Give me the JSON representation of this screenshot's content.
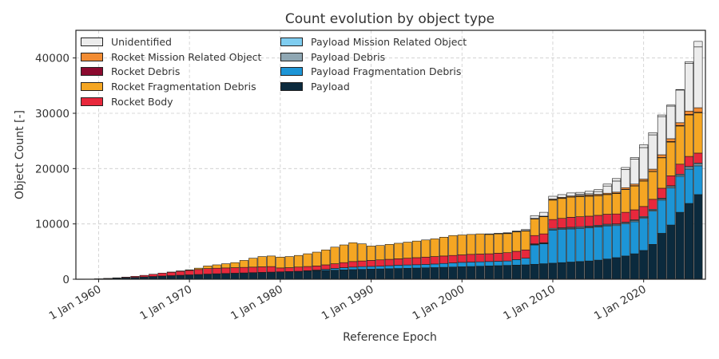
{
  "chart_data": {
    "type": "bar",
    "stacked": true,
    "title": "Count evolution by object type",
    "xlabel": "Reference Epoch",
    "ylabel": "Object Count [-]",
    "ylim": [
      0,
      45000
    ],
    "yticks": [
      0,
      10000,
      20000,
      30000,
      40000
    ],
    "ytick_labels": [
      "0",
      "10000",
      "20000",
      "30000",
      "40000"
    ],
    "xlim": [
      1957.5,
      2026.8
    ],
    "xticks": [
      1960,
      1970,
      1980,
      1990,
      2000,
      2010,
      2020
    ],
    "xtick_labels": [
      "1 Jan 1960",
      "1 Jan 1970",
      "1 Jan 1980",
      "1 Jan 1990",
      "1 Jan 2000",
      "1 Jan 2010",
      "1 Jan 2020"
    ],
    "grid": true,
    "legend_position": "top-left",
    "x": [
      1958,
      1959,
      1960,
      1961,
      1962,
      1963,
      1964,
      1965,
      1966,
      1967,
      1968,
      1969,
      1970,
      1971,
      1972,
      1973,
      1974,
      1975,
      1976,
      1977,
      1978,
      1979,
      1980,
      1981,
      1982,
      1983,
      1984,
      1985,
      1986,
      1987,
      1988,
      1989,
      1990,
      1991,
      1992,
      1993,
      1994,
      1995,
      1996,
      1997,
      1998,
      1999,
      2000,
      2001,
      2002,
      2003,
      2004,
      2005,
      2006,
      2007,
      2008,
      2009,
      2010,
      2011,
      2012,
      2013,
      2014,
      2015,
      2016,
      2017,
      2018,
      2019,
      2020,
      2021,
      2022,
      2023,
      2024,
      2025,
      2026
    ],
    "total": [
      10,
      30,
      70,
      150,
      250,
      380,
      520,
      700,
      900,
      1100,
      1300,
      1500,
      1700,
      2000,
      2400,
      2600,
      2800,
      3000,
      3400,
      3800,
      4100,
      4200,
      4000,
      4100,
      4300,
      4600,
      4900,
      5300,
      5800,
      6200,
      6600,
      6400,
      6000,
      6100,
      6300,
      6500,
      6700,
      6900,
      7100,
      7300,
      7600,
      7900,
      8000,
      8100,
      8200,
      8200,
      8300,
      8400,
      8700,
      9000,
      11500,
      12100,
      15000,
      15300,
      15600,
      15700,
      15900,
      16200,
      17200,
      18200,
      20200,
      22000,
      24300,
      26500,
      29700,
      31500,
      34300,
      39300,
      43000
    ],
    "series": [
      {
        "name": "Payload",
        "color": "#0b2a3d",
        "values": [
          10,
          25,
          60,
          120,
          190,
          270,
          340,
          420,
          500,
          580,
          650,
          720,
          790,
          860,
          930,
          990,
          1040,
          1090,
          1140,
          1190,
          1240,
          1290,
          1340,
          1390,
          1440,
          1490,
          1540,
          1590,
          1640,
          1690,
          1740,
          1780,
          1820,
          1860,
          1900,
          1940,
          1980,
          2020,
          2060,
          2100,
          2150,
          2200,
          2250,
          2300,
          2350,
          2400,
          2450,
          2500,
          2550,
          2600,
          2700,
          2800,
          2900,
          3000,
          3100,
          3200,
          3300,
          3450,
          3650,
          3900,
          4200,
          4600,
          5200,
          6300,
          8300,
          9800,
          12100,
          13700,
          15300
        ]
      },
      {
        "name": "Payload Fragmentation Debris",
        "color": "#1d95d6",
        "values": [
          0,
          0,
          0,
          0,
          0,
          0,
          0,
          0,
          0,
          0,
          0,
          0,
          0,
          0,
          0,
          0,
          0,
          0,
          0,
          0,
          0,
          0,
          0,
          0,
          0,
          50,
          120,
          200,
          320,
          400,
          450,
          500,
          500,
          500,
          550,
          600,
          600,
          600,
          620,
          650,
          700,
          750,
          800,
          800,
          800,
          800,
          800,
          800,
          1000,
          1200,
          3500,
          3600,
          6000,
          6000,
          6000,
          6000,
          6000,
          6000,
          6000,
          5800,
          5800,
          5800,
          5800,
          6000,
          6000,
          6700,
          6500,
          6200,
          5200
        ]
      },
      {
        "name": "Payload Debris",
        "color": "#8fa7b3",
        "values": [
          0,
          0,
          0,
          0,
          0,
          0,
          0,
          0,
          0,
          0,
          0,
          0,
          0,
          0,
          0,
          0,
          0,
          0,
          0,
          0,
          0,
          0,
          0,
          0,
          0,
          0,
          0,
          0,
          0,
          0,
          0,
          0,
          0,
          0,
          0,
          0,
          0,
          0,
          0,
          0,
          0,
          0,
          0,
          0,
          0,
          0,
          0,
          0,
          0,
          0,
          100,
          100,
          150,
          150,
          150,
          150,
          150,
          150,
          150,
          150,
          150,
          200,
          200,
          200,
          200,
          250,
          250,
          300,
          300
        ]
      },
      {
        "name": "Payload Mission Related Object",
        "color": "#7fcdf0",
        "values": [
          0,
          0,
          0,
          0,
          0,
          0,
          0,
          0,
          0,
          0,
          0,
          0,
          0,
          0,
          0,
          0,
          0,
          0,
          0,
          0,
          0,
          0,
          0,
          0,
          0,
          0,
          0,
          0,
          0,
          0,
          0,
          0,
          0,
          0,
          0,
          0,
          0,
          0,
          0,
          0,
          0,
          0,
          0,
          0,
          0,
          0,
          0,
          0,
          0,
          0,
          100,
          100,
          150,
          150,
          150,
          150,
          150,
          150,
          150,
          150,
          150,
          150,
          150,
          150,
          150,
          150,
          150,
          200,
          200
        ]
      },
      {
        "name": "Rocket Body",
        "color": "#e8283c",
        "values": [
          0,
          5,
          10,
          30,
          60,
          110,
          180,
          280,
          400,
          520,
          620,
          720,
          810,
          900,
          1000,
          1000,
          1000,
          1000,
          1000,
          1000,
          1000,
          1000,
          700,
          700,
          760,
          760,
          740,
          810,
          840,
          910,
          1010,
          1020,
          1080,
          1140,
          1150,
          1160,
          1220,
          1280,
          1320,
          1350,
          1350,
          1350,
          1350,
          1400,
          1400,
          1400,
          1450,
          1500,
          1500,
          1500,
          1500,
          1600,
          1600,
          1700,
          1800,
          1800,
          1800,
          1800,
          1800,
          1800,
          1800,
          1800,
          1800,
          1800,
          1800,
          1800,
          1800,
          1800,
          1800
        ]
      },
      {
        "name": "Rocket Fragmentation Debris",
        "color": "#f5a623",
        "values": [
          0,
          0,
          0,
          0,
          0,
          0,
          0,
          0,
          0,
          0,
          30,
          60,
          100,
          240,
          470,
          610,
          760,
          910,
          1260,
          1610,
          1860,
          1910,
          1960,
          2010,
          2100,
          2300,
          2500,
          2700,
          3000,
          3200,
          3400,
          3100,
          2600,
          2600,
          2700,
          2800,
          2900,
          3000,
          3100,
          3200,
          3400,
          3600,
          3600,
          3600,
          3650,
          3500,
          3500,
          3450,
          3500,
          3400,
          3000,
          3100,
          3500,
          3600,
          3650,
          3650,
          3600,
          3550,
          3550,
          3700,
          4100,
          4300,
          4600,
          5000,
          5500,
          6100,
          6900,
          7500,
          7300
        ]
      },
      {
        "name": "Rocket Debris",
        "color": "#8b0a2f",
        "values": [
          0,
          0,
          0,
          0,
          0,
          0,
          0,
          0,
          0,
          0,
          0,
          0,
          0,
          0,
          0,
          0,
          0,
          0,
          0,
          0,
          0,
          0,
          0,
          0,
          0,
          0,
          0,
          0,
          0,
          0,
          0,
          0,
          0,
          0,
          0,
          0,
          0,
          0,
          0,
          0,
          0,
          0,
          0,
          0,
          0,
          0,
          50,
          50,
          50,
          50,
          50,
          50,
          50,
          50,
          50,
          50,
          50,
          50,
          50,
          50,
          50,
          50,
          50,
          50,
          50,
          100,
          100,
          100,
          100
        ]
      },
      {
        "name": "Rocket Mission Related Object",
        "color": "#f28c33",
        "values": [
          0,
          0,
          0,
          0,
          0,
          0,
          0,
          0,
          0,
          0,
          0,
          0,
          0,
          0,
          0,
          0,
          0,
          0,
          0,
          0,
          0,
          0,
          0,
          0,
          0,
          0,
          0,
          0,
          0,
          0,
          0,
          0,
          0,
          0,
          0,
          0,
          0,
          0,
          0,
          0,
          0,
          0,
          0,
          0,
          0,
          0,
          0,
          50,
          50,
          50,
          50,
          50,
          150,
          150,
          150,
          150,
          200,
          200,
          200,
          200,
          300,
          300,
          300,
          400,
          500,
          500,
          500,
          600,
          800
        ]
      },
      {
        "name": "Unidentified",
        "color": "#ececec",
        "values": [
          0,
          0,
          0,
          0,
          0,
          0,
          0,
          0,
          0,
          0,
          0,
          0,
          0,
          0,
          0,
          0,
          0,
          0,
          0,
          0,
          0,
          0,
          0,
          0,
          0,
          0,
          0,
          0,
          0,
          0,
          0,
          0,
          0,
          0,
          0,
          0,
          0,
          0,
          0,
          0,
          0,
          0,
          0,
          0,
          0,
          100,
          50,
          0,
          0,
          0,
          0,
          0,
          0,
          0,
          0,
          200,
          200,
          500,
          1300,
          2000,
          3300,
          4500,
          5700,
          6200,
          6900,
          5900,
          5900,
          8600,
          11000
        ]
      }
    ],
    "legend_order": [
      "Unidentified",
      "Rocket Mission Related Object",
      "Rocket Debris",
      "Rocket Fragmentation Debris",
      "Rocket Body",
      "Payload Mission Related Object",
      "Payload Debris",
      "Payload Fragmentation Debris",
      "Payload"
    ]
  }
}
